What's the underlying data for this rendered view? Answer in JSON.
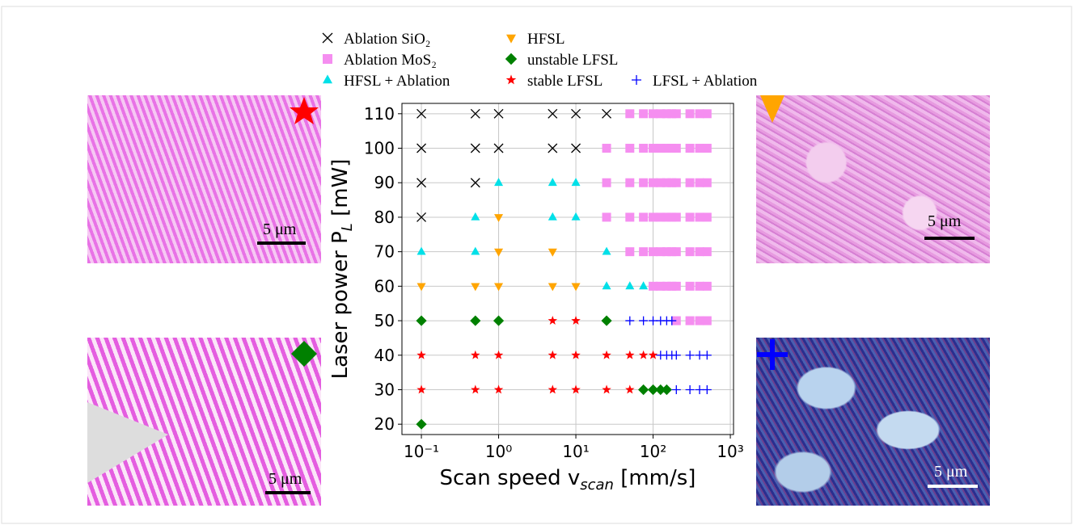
{
  "chart_data": {
    "type": "scatter",
    "xlabel": [
      "Scan speed v",
      "scan",
      " [mm/s]"
    ],
    "ylabel": [
      "Laser power P",
      "L",
      " [mW]"
    ],
    "xscale": "log",
    "grid": true,
    "xlim": [
      0.056,
      1100
    ],
    "ylim": [
      17,
      113
    ],
    "xticks": [
      {
        "value": 0.1,
        "label": "10⁻¹"
      },
      {
        "value": 1,
        "label": "10⁰"
      },
      {
        "value": 10,
        "label": "10¹"
      },
      {
        "value": 100,
        "label": "10²"
      },
      {
        "value": 1000,
        "label": "10³"
      }
    ],
    "yticks": [
      20,
      30,
      40,
      50,
      60,
      70,
      80,
      90,
      100,
      110
    ],
    "series": [
      {
        "name": "Ablation SiO₂",
        "marker": "x",
        "color": "#000000",
        "x": [
          0.1,
          0.5,
          1,
          5,
          10,
          25,
          0.1,
          0.5,
          1,
          5,
          10,
          0.1,
          0.5,
          0.1
        ],
        "values": [
          110,
          110,
          110,
          110,
          110,
          110,
          100,
          100,
          100,
          100,
          100,
          90,
          90,
          80
        ]
      },
      {
        "name": "Ablation MoS₂",
        "marker": "s",
        "color": "#f58ef0",
        "x": [
          50,
          75,
          100,
          125,
          150,
          175,
          200,
          300,
          400,
          500,
          25,
          50,
          75,
          100,
          125,
          150,
          175,
          200,
          300,
          400,
          500,
          25,
          50,
          75,
          100,
          125,
          150,
          175,
          200,
          300,
          400,
          500,
          25,
          50,
          75,
          100,
          125,
          150,
          175,
          200,
          300,
          400,
          500,
          50,
          75,
          100,
          125,
          150,
          175,
          200,
          300,
          400,
          500,
          100,
          125,
          150,
          175,
          200,
          300,
          400,
          500,
          200,
          300,
          400,
          500
        ],
        "values": [
          110,
          110,
          110,
          110,
          110,
          110,
          110,
          110,
          110,
          110,
          100,
          100,
          100,
          100,
          100,
          100,
          100,
          100,
          100,
          100,
          100,
          90,
          90,
          90,
          90,
          90,
          90,
          90,
          90,
          90,
          90,
          90,
          80,
          80,
          80,
          80,
          80,
          80,
          80,
          80,
          80,
          80,
          80,
          70,
          70,
          70,
          70,
          70,
          70,
          70,
          70,
          70,
          70,
          60,
          60,
          60,
          60,
          60,
          60,
          60,
          60,
          50,
          50,
          50,
          50
        ]
      },
      {
        "name": "HFSL + Ablation",
        "marker": "^",
        "color": "#00e0e8",
        "x": [
          1,
          5,
          10,
          0.5,
          5,
          10,
          0.1,
          0.5,
          25,
          25,
          50,
          75
        ],
        "values": [
          90,
          90,
          90,
          80,
          80,
          80,
          70,
          70,
          70,
          60,
          60,
          60
        ]
      },
      {
        "name": "HFSL",
        "marker": "v",
        "color": "#ffa500",
        "x": [
          1,
          1,
          5,
          0.1,
          0.5,
          1,
          5,
          10
        ],
        "values": [
          80,
          70,
          70,
          60,
          60,
          60,
          60,
          60
        ]
      },
      {
        "name": "unstable LFSL",
        "marker": "D",
        "color": "#008000",
        "x": [
          0.1,
          0.5,
          1,
          25,
          75,
          100,
          125,
          150,
          0.1
        ],
        "values": [
          50,
          50,
          50,
          50,
          30,
          30,
          30,
          30,
          20
        ]
      },
      {
        "name": "stable LFSL",
        "marker": "*",
        "color": "#ff0000",
        "x": [
          5,
          10,
          0.1,
          0.5,
          1,
          5,
          10,
          25,
          50,
          75,
          100,
          0.1,
          0.5,
          1,
          5,
          10,
          25,
          50
        ],
        "values": [
          50,
          50,
          40,
          40,
          40,
          40,
          40,
          40,
          40,
          40,
          40,
          30,
          30,
          30,
          30,
          30,
          30,
          30
        ]
      },
      {
        "name": "LFSL + Ablation",
        "marker": "+",
        "color": "#0000ff",
        "x": [
          50,
          75,
          100,
          125,
          150,
          175,
          125,
          150,
          175,
          200,
          300,
          400,
          500,
          200,
          300,
          400,
          500
        ],
        "values": [
          50,
          50,
          50,
          50,
          50,
          50,
          40,
          40,
          40,
          40,
          40,
          40,
          40,
          30,
          30,
          30,
          30
        ]
      }
    ]
  },
  "images": [
    {
      "scale_bar": "5 μm"
    },
    {
      "scale_bar": "5 μm"
    },
    {
      "scale_bar": "5 μm"
    },
    {
      "scale_bar": "5 μm"
    }
  ]
}
